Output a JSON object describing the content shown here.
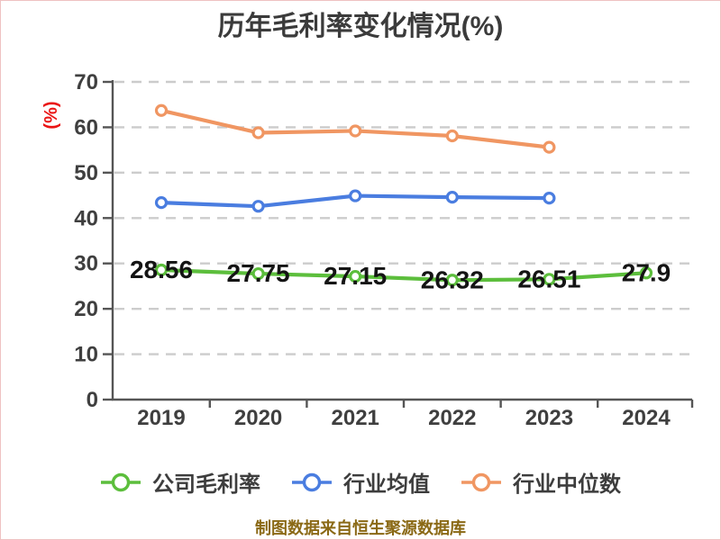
{
  "frame": {
    "border_color": "#efc2c2",
    "background": "#ffffff"
  },
  "chart_data": {
    "type": "line",
    "title": "历年毛利率变化情况(%)",
    "ylabel": "(%)",
    "xlabel": "",
    "categories": [
      "2019",
      "2020",
      "2021",
      "2022",
      "2023",
      "2024"
    ],
    "ylim": [
      0,
      70
    ],
    "yticks": [
      0,
      10,
      20,
      30,
      40,
      50,
      60,
      70
    ],
    "grid": "horizontal-dashed",
    "legend_position": "bottom",
    "series": [
      {
        "key": "company-gross-margin",
        "name": "公司毛利率",
        "color": "#5CBE3C",
        "values": [
          28.56,
          27.75,
          27.15,
          26.32,
          26.51,
          27.9
        ],
        "point_labels": [
          "28.56",
          "27.75",
          "27.15",
          "26.32",
          "26.51",
          "27.9"
        ]
      },
      {
        "key": "industry-average",
        "name": "行业均值",
        "color": "#4A7DE0",
        "values": [
          43.4,
          42.6,
          44.9,
          44.6,
          44.4,
          null
        ]
      },
      {
        "key": "industry-median",
        "name": "行业中位数",
        "color": "#F09662",
        "values": [
          63.7,
          58.8,
          59.2,
          58.1,
          55.6,
          null
        ]
      }
    ],
    "style": {
      "title_color": "#3B3B3B",
      "tick_label_color": "#3F3F3F",
      "point_label_color": "#141414",
      "axis_color": "#555555",
      "grid_color": "#CCCCCC",
      "ylabel_color": "#EA1515",
      "legend_text_color": "#3D3D3D"
    }
  },
  "footer": {
    "text": "制图数据来自恒生聚源数据库",
    "color": "#8A6915"
  }
}
